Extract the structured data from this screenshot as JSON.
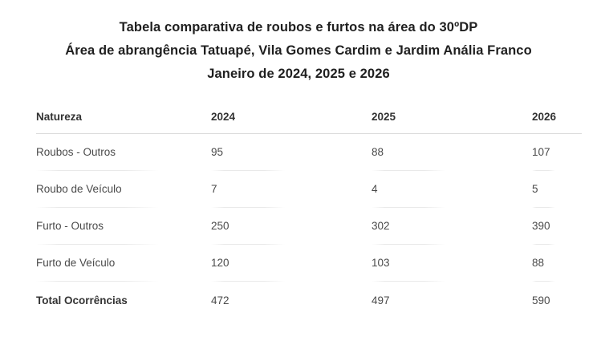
{
  "title": {
    "line1": "Tabela comparativa de roubos e furtos na área do 30ºDP",
    "line2": "Área de abrangência Tatuapé, Vila Gomes Cardim e Jardim Anália Franco",
    "line3": "Janeiro de 2024, 2025 e 2026"
  },
  "table": {
    "columns": [
      "Natureza",
      "2024",
      "2025",
      "2026"
    ],
    "rows": [
      [
        "Roubos - Outros",
        "95",
        "88",
        "107"
      ],
      [
        "Roubo de Veículo",
        "7",
        "4",
        "5"
      ],
      [
        "Furto - Outros",
        "250",
        "302",
        "390"
      ],
      [
        "Furto de Veículo",
        "120",
        "103",
        "88"
      ]
    ],
    "total_row": [
      "Total Ocorrências",
      "472",
      "497",
      "590"
    ]
  },
  "colors": {
    "background": "#ffffff",
    "title_text": "#1f1f1f",
    "header_text": "#333333",
    "body_text": "#4a4a4a",
    "header_rule": "#dcdcdc",
    "row_rule": "#e9e9e9"
  },
  "chart_data": {
    "type": "table",
    "title": "Tabela comparativa de roubos e furtos na área do 30ºDP",
    "subtitle": "Área de abrangência Tatuapé, Vila Gomes Cardim e Jardim Anália Franco — Janeiro de 2024, 2025 e 2026",
    "categories": [
      "Roubos - Outros",
      "Roubo de Veículo",
      "Furto - Outros",
      "Furto de Veículo",
      "Total Ocorrências"
    ],
    "series": [
      {
        "name": "2024",
        "values": [
          95,
          7,
          250,
          120,
          472
        ]
      },
      {
        "name": "2025",
        "values": [
          88,
          4,
          302,
          103,
          497
        ]
      },
      {
        "name": "2026",
        "values": [
          107,
          5,
          390,
          88,
          590
        ]
      }
    ]
  }
}
